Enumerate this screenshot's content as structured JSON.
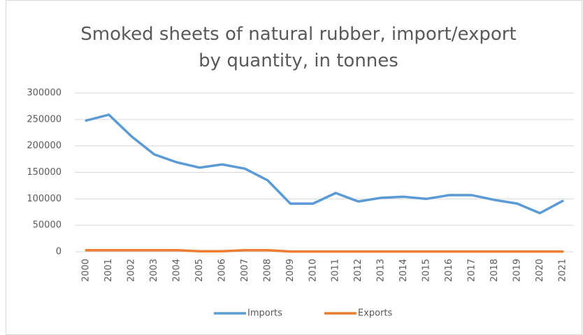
{
  "chart_data": {
    "type": "line",
    "title": "Smoked sheets of natural rubber, import/export by quantity, in tonnes",
    "categories": [
      "2000",
      "2001",
      "2002",
      "2003",
      "2004",
      "2005",
      "2006",
      "2007",
      "2008",
      "2009",
      "2010",
      "2011",
      "2012",
      "2013",
      "2014",
      "2015",
      "2016",
      "2017",
      "2018",
      "2019",
      "2020",
      "2021"
    ],
    "series": [
      {
        "name": "Imports",
        "color": "#5b9bd5",
        "values": [
          248000,
          259000,
          218000,
          184000,
          169000,
          159000,
          165000,
          157000,
          135000,
          91000,
          91000,
          111000,
          95000,
          102000,
          104000,
          100000,
          107000,
          107000,
          98000,
          91000,
          73000,
          96000
        ]
      },
      {
        "name": "Exports",
        "color": "#ed7d31",
        "values": [
          3000,
          3000,
          3000,
          3000,
          3000,
          1000,
          1000,
          3000,
          3000,
          500,
          500,
          500,
          500,
          500,
          500,
          500,
          500,
          500,
          500,
          500,
          500,
          500
        ]
      }
    ],
    "ylim": [
      0,
      300000
    ],
    "yticks": [
      0,
      50000,
      100000,
      150000,
      200000,
      250000,
      300000
    ],
    "grid": true,
    "legend": "bottom"
  }
}
